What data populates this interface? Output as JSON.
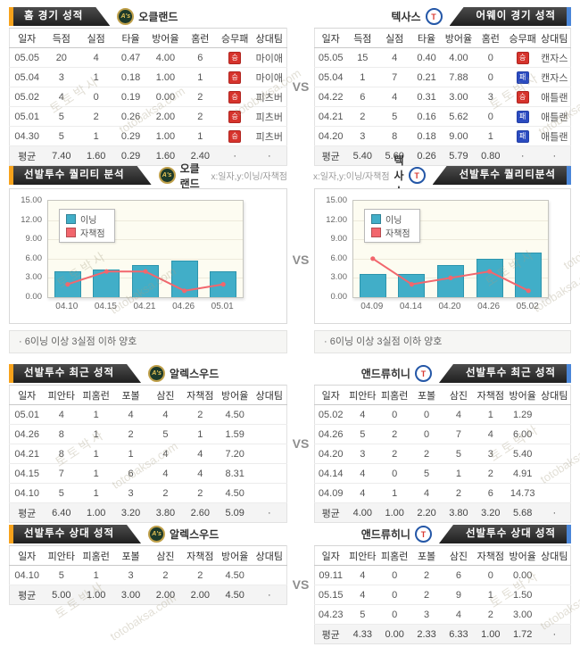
{
  "vs_label": "VS",
  "watermark": {
    "kr": "토토박사",
    "en": "totobaksa.com"
  },
  "teams": {
    "oakland": {
      "name": "오클랜드",
      "logo_text": "A's"
    },
    "texas": {
      "name": "텍사스",
      "logo_text": "T"
    }
  },
  "pitchers": {
    "wood": {
      "name": "알렉스우드"
    },
    "heaney": {
      "name": "앤드류히니"
    }
  },
  "colors": {
    "win_badge": "#d6332c",
    "loss_badge": "#2b4bc0",
    "home_accent": "#f7a21b",
    "away_accent": "#4a86d8",
    "bar": "#41aec8",
    "line": "#f2666d",
    "tab_bg": "#2b2b2b"
  },
  "sections": {
    "home_record": {
      "title": "홈 경기 성적",
      "table": {
        "headers": [
          "일자",
          "득점",
          "실점",
          "타율",
          "방어율",
          "홈런",
          "승무패",
          "상대팀"
        ],
        "avg_last": true,
        "rows": [
          [
            "05.05",
            "20",
            "4",
            "0.47",
            "4.00",
            "6",
            {
              "text": "승",
              "kind": "win"
            },
            "마이애"
          ],
          [
            "05.04",
            "3",
            "1",
            "0.18",
            "1.00",
            "1",
            {
              "text": "승",
              "kind": "win"
            },
            "마이애"
          ],
          [
            "05.02",
            "4",
            "0",
            "0.19",
            "0.00",
            "2",
            {
              "text": "승",
              "kind": "win"
            },
            "피츠버"
          ],
          [
            "05.01",
            "5",
            "2",
            "0.26",
            "2.00",
            "2",
            {
              "text": "승",
              "kind": "win"
            },
            "피츠버"
          ],
          [
            "04.30",
            "5",
            "1",
            "0.29",
            "1.00",
            "1",
            {
              "text": "승",
              "kind": "win"
            },
            "피츠버"
          ],
          [
            "평균",
            "7.40",
            "1.60",
            "0.29",
            "1.60",
            "2.40",
            "·",
            "·"
          ]
        ]
      }
    },
    "away_record": {
      "title": "어웨이 경기 성적",
      "table": {
        "headers": [
          "일자",
          "득점",
          "실점",
          "타율",
          "방어율",
          "홈런",
          "승무패",
          "상대팀"
        ],
        "avg_last": true,
        "rows": [
          [
            "05.05",
            "15",
            "4",
            "0.40",
            "4.00",
            "0",
            {
              "text": "승",
              "kind": "win"
            },
            "캔자스"
          ],
          [
            "05.04",
            "1",
            "7",
            "0.21",
            "7.88",
            "0",
            {
              "text": "패",
              "kind": "loss"
            },
            "캔자스"
          ],
          [
            "04.22",
            "6",
            "4",
            "0.31",
            "3.00",
            "3",
            {
              "text": "승",
              "kind": "win"
            },
            "애틀랜"
          ],
          [
            "04.21",
            "2",
            "5",
            "0.16",
            "5.62",
            "0",
            {
              "text": "패",
              "kind": "loss"
            },
            "애틀랜"
          ],
          [
            "04.20",
            "3",
            "8",
            "0.18",
            "9.00",
            "1",
            {
              "text": "패",
              "kind": "loss"
            },
            "애틀랜"
          ],
          [
            "평균",
            "5.40",
            "5.60",
            "0.26",
            "5.79",
            "0.80",
            "·",
            "·"
          ]
        ]
      }
    },
    "quality_home": {
      "title": "선발투수 퀄리티 분석",
      "axis_note": "x:일자,y:이닝/자책점",
      "note": "· 6이닝 이상 3실점 이하 양호"
    },
    "quality_away": {
      "title": "선발투수 퀄리티분석",
      "axis_note": "x:일자,y:이닝/자책점",
      "note": "· 6이닝 이상 3실점 이하 양호"
    },
    "recent_home": {
      "title": "선발투수 최근 성적",
      "table": {
        "headers": [
          "일자",
          "피안타",
          "피홈런",
          "포볼",
          "삼진",
          "자책점",
          "방어율",
          "상대팀"
        ],
        "avg_last": true,
        "rows": [
          [
            "05.01",
            "4",
            "1",
            "4",
            "4",
            "2",
            "4.50",
            ""
          ],
          [
            "04.26",
            "8",
            "1",
            "2",
            "5",
            "1",
            "1.59",
            ""
          ],
          [
            "04.21",
            "8",
            "1",
            "1",
            "4",
            "4",
            "7.20",
            ""
          ],
          [
            "04.15",
            "7",
            "1",
            "6",
            "4",
            "4",
            "8.31",
            ""
          ],
          [
            "04.10",
            "5",
            "1",
            "3",
            "2",
            "2",
            "4.50",
            ""
          ],
          [
            "평균",
            "6.40",
            "1.00",
            "3.20",
            "3.80",
            "2.60",
            "5.09",
            "·"
          ]
        ]
      }
    },
    "recent_away": {
      "title": "선발투수 최근 성적",
      "table": {
        "headers": [
          "일자",
          "피안타",
          "피홈런",
          "포볼",
          "삼진",
          "자책점",
          "방어율",
          "상대팀"
        ],
        "avg_last": true,
        "rows": [
          [
            "05.02",
            "4",
            "0",
            "0",
            "4",
            "1",
            "1.29",
            ""
          ],
          [
            "04.26",
            "5",
            "2",
            "0",
            "7",
            "4",
            "6.00",
            ""
          ],
          [
            "04.20",
            "3",
            "2",
            "2",
            "5",
            "3",
            "5.40",
            ""
          ],
          [
            "04.14",
            "4",
            "0",
            "5",
            "1",
            "2",
            "4.91",
            ""
          ],
          [
            "04.09",
            "4",
            "1",
            "4",
            "2",
            "6",
            "14.73",
            ""
          ],
          [
            "평균",
            "4.00",
            "1.00",
            "2.20",
            "3.80",
            "3.20",
            "5.68",
            "·"
          ]
        ]
      }
    },
    "vs_home": {
      "title": "선발투수 상대 성적",
      "table": {
        "headers": [
          "일자",
          "피안타",
          "피홈런",
          "포볼",
          "삼진",
          "자책점",
          "방어율",
          "상대팀"
        ],
        "avg_last": true,
        "rows": [
          [
            "04.10",
            "5",
            "1",
            "3",
            "2",
            "2",
            "4.50",
            ""
          ],
          [
            "평균",
            "5.00",
            "1.00",
            "3.00",
            "2.00",
            "2.00",
            "4.50",
            "·"
          ]
        ]
      }
    },
    "vs_away": {
      "title": "선발투수 상대 성적",
      "table": {
        "headers": [
          "일자",
          "피안타",
          "피홈런",
          "포볼",
          "삼진",
          "자책점",
          "방어율",
          "상대팀"
        ],
        "avg_last": true,
        "rows": [
          [
            "09.11",
            "4",
            "0",
            "2",
            "6",
            "0",
            "0.00",
            ""
          ],
          [
            "05.15",
            "4",
            "0",
            "2",
            "9",
            "1",
            "1.50",
            ""
          ],
          [
            "04.23",
            "5",
            "0",
            "3",
            "4",
            "2",
            "3.00",
            ""
          ],
          [
            "평균",
            "4.33",
            "0.00",
            "2.33",
            "6.33",
            "1.00",
            "1.72",
            "·"
          ]
        ]
      }
    }
  },
  "chart_data": [
    {
      "type": "bar+line",
      "team": "오클랜드",
      "categories": [
        "04.10",
        "04.15",
        "04.21",
        "04.26",
        "05.01"
      ],
      "series": [
        {
          "name": "이닝",
          "kind": "bar",
          "color": "#41aec8",
          "values": [
            4.0,
            4.33,
            5.0,
            5.67,
            4.0
          ]
        },
        {
          "name": "자책점",
          "kind": "line",
          "color": "#f2666d",
          "values": [
            2,
            4,
            4,
            1,
            2
          ]
        }
      ],
      "ylim": [
        0,
        15
      ],
      "ytick_labels": [
        "15.00",
        "12.00",
        "9.00",
        "6.00",
        "3.00",
        "0.00"
      ],
      "xlabel": "일자",
      "ylabel": "이닝/자책점",
      "grid": true,
      "legend_position": "top-left"
    },
    {
      "type": "bar+line",
      "team": "텍사스",
      "categories": [
        "04.09",
        "04.14",
        "04.20",
        "04.26",
        "05.02"
      ],
      "series": [
        {
          "name": "이닝",
          "kind": "bar",
          "color": "#41aec8",
          "values": [
            3.67,
            3.67,
            5.0,
            6.0,
            7.0
          ]
        },
        {
          "name": "자책점",
          "kind": "line",
          "color": "#f2666d",
          "values": [
            6,
            2,
            3,
            4,
            1
          ]
        }
      ],
      "ylim": [
        0,
        15
      ],
      "ytick_labels": [
        "15.00",
        "12.00",
        "9.00",
        "6.00",
        "3.00",
        "0.00"
      ],
      "xlabel": "일자",
      "ylabel": "이닝/자책점",
      "grid": true,
      "legend_position": "top-left"
    }
  ]
}
